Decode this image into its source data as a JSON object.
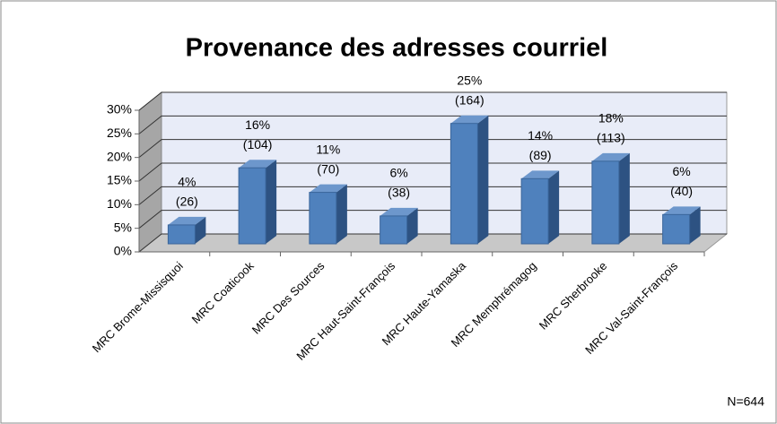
{
  "chart_data": {
    "type": "bar3d",
    "title": "Provenance des adresses courriel",
    "categories": [
      "MRC Brome-Missisquoi",
      "MRC Coaticook",
      "MRC Des Sources",
      "MRC Haut-Saint-François",
      "MRC Haute-Yamaska",
      "MRC Memphrémagog",
      "MRC Sherbrooke",
      "MRC Val-Saint-François"
    ],
    "values": [
      4.0,
      16.1,
      10.9,
      5.9,
      25.5,
      13.8,
      17.5,
      6.2
    ],
    "value_labels": [
      "4%",
      "16%",
      "11%",
      "6%",
      "25%",
      "14%",
      "18%",
      "6%"
    ],
    "counts": [
      26,
      104,
      70,
      38,
      164,
      89,
      113,
      40
    ],
    "count_labels": [
      "(26)",
      "(104)",
      "(70)",
      "(38)",
      "(164)",
      "(89)",
      "(113)",
      "(40)"
    ],
    "color": "#4f81bd",
    "ylim": [
      0,
      30
    ],
    "yticks": [
      {
        "value": 0,
        "label": "0%"
      },
      {
        "value": 5,
        "label": "5%"
      },
      {
        "value": 10,
        "label": "10%"
      },
      {
        "value": 15,
        "label": "15%"
      },
      {
        "value": 20,
        "label": "20%"
      },
      {
        "value": 25,
        "label": "25%"
      },
      {
        "value": 30,
        "label": "30%"
      }
    ],
    "grid": true,
    "note": "N=644"
  }
}
